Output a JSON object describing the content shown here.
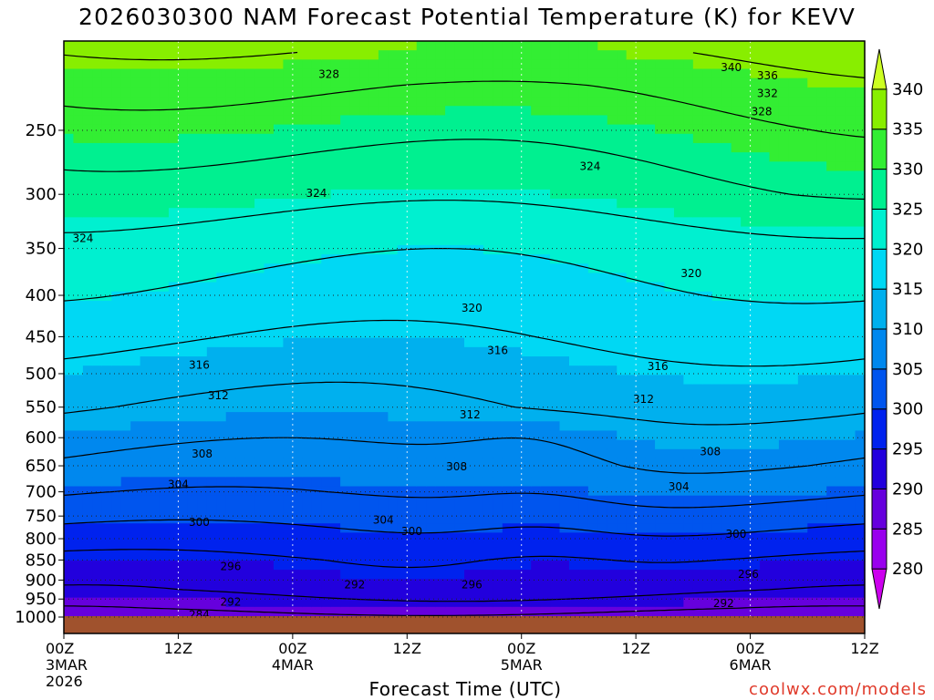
{
  "title": "2026030300 NAM Forecast Potential Temperature (K) for KEVV",
  "credit": "coolwx.com/models",
  "chart_data": {
    "type": "heatmap",
    "title": "2026030300 NAM Forecast Potential Temperature (K) for KEVV",
    "xlabel": "Forecast Time (UTC)",
    "ylabel": "",
    "x_ticks": [
      {
        "hour": 0,
        "label": "00Z",
        "date": "3MAR",
        "year": "2026"
      },
      {
        "hour": 12,
        "label": "12Z",
        "date": "",
        "year": ""
      },
      {
        "hour": 24,
        "label": "00Z",
        "date": "4MAR",
        "year": ""
      },
      {
        "hour": 36,
        "label": "12Z",
        "date": "",
        "year": ""
      },
      {
        "hour": 48,
        "label": "00Z",
        "date": "5MAR",
        "year": ""
      },
      {
        "hour": 60,
        "label": "12Z",
        "date": "",
        "year": ""
      },
      {
        "hour": 72,
        "label": "00Z",
        "date": "6MAR",
        "year": ""
      },
      {
        "hour": 84,
        "label": "12Z",
        "date": "",
        "year": ""
      }
    ],
    "xlim": [
      0,
      84
    ],
    "y_ticks": [
      250,
      300,
      350,
      400,
      450,
      500,
      550,
      600,
      650,
      700,
      750,
      800,
      850,
      900,
      950,
      1000
    ],
    "ylim": [
      1000,
      200
    ],
    "y_scale": "log-pressure",
    "grid": true,
    "colorbar": {
      "levels": [
        280,
        285,
        290,
        295,
        300,
        305,
        310,
        315,
        320,
        325,
        330,
        335,
        340
      ],
      "colors": [
        "#cc00ee",
        "#9900ee",
        "#6600dd",
        "#2200dd",
        "#0022ee",
        "#0055ee",
        "#0088ee",
        "#00b0ee",
        "#00d8f4",
        "#00f0d0",
        "#00f090",
        "#33ee33",
        "#88ee00",
        "#ccff22"
      ]
    },
    "contour_levels": [
      284,
      288,
      292,
      296,
      300,
      304,
      308,
      312,
      316,
      320,
      324,
      328,
      332,
      336,
      340
    ],
    "contour_labels": [
      {
        "level": 328,
        "hour": 27.8,
        "p": 213
      },
      {
        "level": 340,
        "hour": 70,
        "p": 209
      },
      {
        "level": 336,
        "hour": 73.8,
        "p": 214
      },
      {
        "level": 332,
        "hour": 73.8,
        "p": 225
      },
      {
        "level": 328,
        "hour": 73.2,
        "p": 237
      },
      {
        "level": 324,
        "hour": 55.2,
        "p": 277
      },
      {
        "level": 324,
        "hour": 26.5,
        "p": 299
      },
      {
        "level": 324,
        "hour": 2,
        "p": 340
      },
      {
        "level": 320,
        "hour": 65.8,
        "p": 376
      },
      {
        "level": 320,
        "hour": 42.8,
        "p": 415
      },
      {
        "level": 316,
        "hour": 45.5,
        "p": 468
      },
      {
        "level": 316,
        "hour": 14.2,
        "p": 488
      },
      {
        "level": 316,
        "hour": 62.3,
        "p": 490
      },
      {
        "level": 312,
        "hour": 16.2,
        "p": 532
      },
      {
        "level": 312,
        "hour": 60.8,
        "p": 538
      },
      {
        "level": 312,
        "hour": 42.6,
        "p": 562
      },
      {
        "level": 308,
        "hour": 14.5,
        "p": 628
      },
      {
        "level": 308,
        "hour": 41.2,
        "p": 652
      },
      {
        "level": 308,
        "hour": 67.8,
        "p": 624
      },
      {
        "level": 304,
        "hour": 12,
        "p": 685
      },
      {
        "level": 304,
        "hour": 64.5,
        "p": 690
      },
      {
        "level": 304,
        "hour": 33.5,
        "p": 758
      },
      {
        "level": 300,
        "hour": 14.2,
        "p": 763
      },
      {
        "level": 300,
        "hour": 36.5,
        "p": 783
      },
      {
        "level": 300,
        "hour": 70.5,
        "p": 790
      },
      {
        "level": 296,
        "hour": 17.5,
        "p": 866
      },
      {
        "level": 296,
        "hour": 42.8,
        "p": 912
      },
      {
        "level": 296,
        "hour": 71.8,
        "p": 885
      },
      {
        "level": 292,
        "hour": 30.5,
        "p": 912
      },
      {
        "level": 292,
        "hour": 17.5,
        "p": 958
      },
      {
        "level": 292,
        "hour": 69.2,
        "p": 962
      },
      {
        "level": 284,
        "hour": 14.2,
        "p": 993
      }
    ],
    "surface_color": "#a0522d"
  }
}
